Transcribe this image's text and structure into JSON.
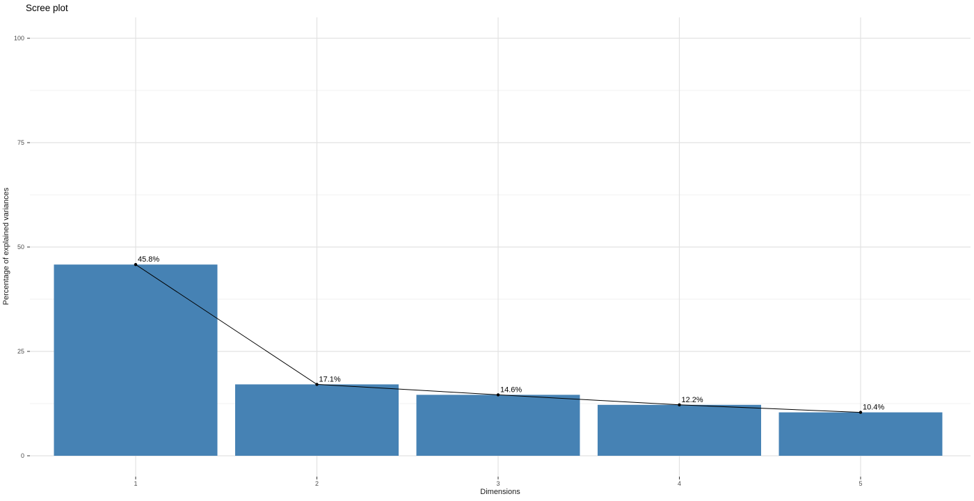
{
  "chart_data": {
    "type": "bar",
    "title": "Scree plot",
    "xlabel": "Dimensions",
    "ylabel": "Percentage of explained variances",
    "categories": [
      "1",
      "2",
      "3",
      "4",
      "5"
    ],
    "series": [
      {
        "name": "Percentage of explained variances",
        "values": [
          45.8,
          17.1,
          14.6,
          12.2,
          10.4
        ],
        "point_labels": [
          "45.8%",
          "17.1%",
          "14.6%",
          "12.2%",
          "10.4%"
        ]
      }
    ],
    "overlay_line": true,
    "ylim": [
      0,
      105
    ],
    "y_major_ticks": [
      0,
      25,
      50,
      75,
      100
    ],
    "y_minor_ticks": [
      12.5,
      37.5,
      62.5,
      87.5
    ],
    "grid": "major-and-minor-horizontal, major-vertical",
    "legend": "none",
    "colors": {
      "bar_fill": "#4682B4",
      "line": "#000000",
      "point": "#000000",
      "grid_major": "#e2e2e2",
      "grid_minor": "#f0f0f0",
      "tick_mark": "#333333",
      "tick_label": "#4d4d4d",
      "value_label": "#000000",
      "background": "#ffffff"
    }
  }
}
